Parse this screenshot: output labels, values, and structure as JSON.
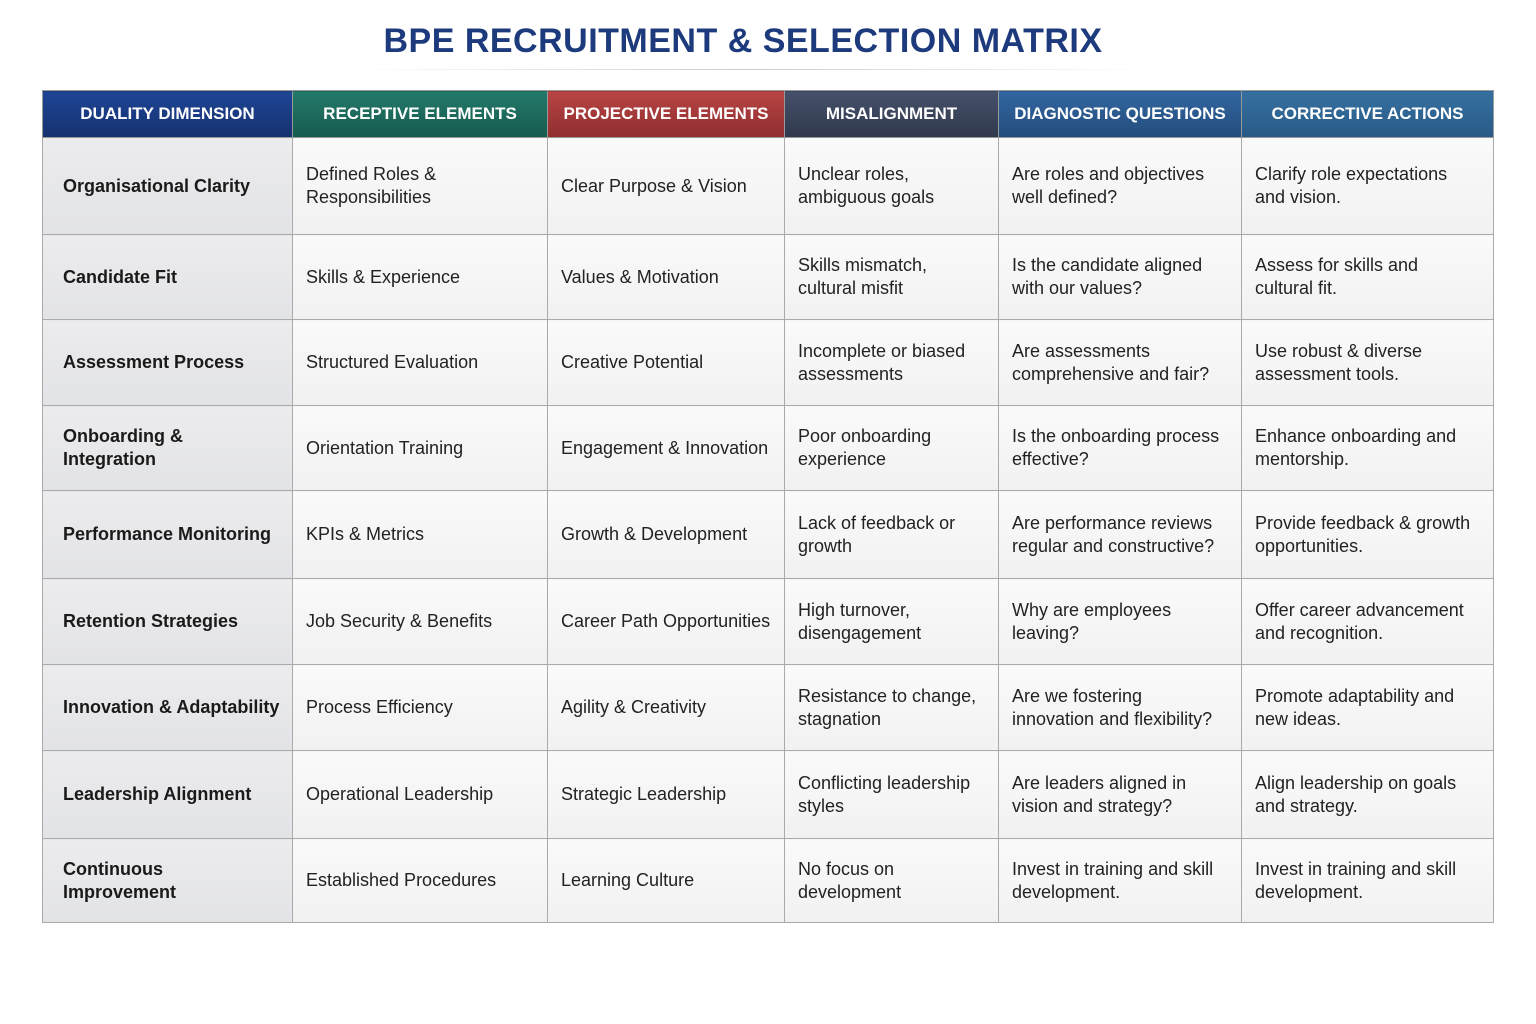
{
  "title": "BPE RECRUITMENT & SELECTION MATRIX",
  "table": {
    "header": [
      "DUALITY DIMENSION",
      "RECEPTIVE ELEMENTS",
      "PROJECTIVE ELEMENTS",
      "MISALIGNMENT",
      "DIAGNOSTIC QUESTIONS",
      "CORRECTIVE ACTIONS"
    ],
    "rows": [
      [
        "Organisational Clarity",
        "Defined Roles & Responsibilities",
        "Clear Purpose & Vision",
        "Unclear roles, ambiguous goals",
        "Are roles and objectives well defined?",
        "Clarify role expectations and vision."
      ],
      [
        "Candidate Fit",
        "Skills & Experience",
        "Values & Motivation",
        "Skills mismatch, cultural misfit",
        "Is the candidate aligned with our values?",
        "Assess for skills and cultural fit."
      ],
      [
        "Assessment Process",
        "Structured Evaluation",
        "Creative Potential",
        "Incomplete or biased assessments",
        "Are assessments comprehensive and fair?",
        "Use robust & diverse assessment tools."
      ],
      [
        "Onboarding & Integration",
        "Orientation Training",
        "Engagement & Innovation",
        "Poor onboarding experience",
        "Is the onboarding process effective?",
        "Enhance onboarding and mentorship."
      ],
      [
        "Performance Monitoring",
        "KPIs & Metrics",
        "Growth & Development",
        "Lack of feedback or growth",
        "Are performance reviews regular and constructive?",
        "Provide feedback & growth opportunities."
      ],
      [
        "Retention Strategies",
        "Job Security & Benefits",
        "Career Path Opportunities",
        "High turnover, disengagement",
        "Why are employees leaving?",
        "Offer career advancement and recognition."
      ],
      [
        "Innovation & Adaptability",
        "Process Efficiency",
        "Agility & Creativity",
        "Resistance to change, stagnation",
        "Are we fostering innovation and flexibility?",
        "Promote adaptability and new ideas."
      ],
      [
        "Leadership Alignment",
        "Operational Leadership",
        "Strategic Leadership",
        "Conflicting leadership styles",
        "Are leaders aligned in vision and strategy?",
        "Align leadership on goals and strategy."
      ],
      [
        "Continuous Improvement",
        "Established Procedures",
        "Learning Culture",
        "No focus on development",
        "Invest in training and skill development.",
        "Invest in training and skill development."
      ]
    ]
  }
}
